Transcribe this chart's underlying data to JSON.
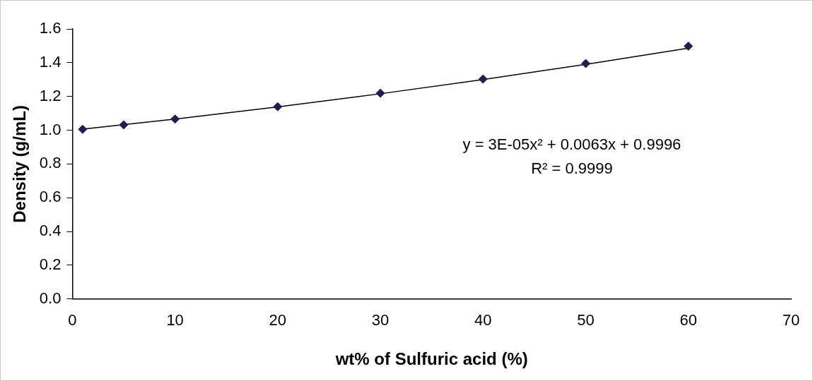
{
  "chart_data": {
    "type": "scatter",
    "xlabel": "wt% of Sulfuric acid (%)",
    "ylabel": "Density (g/mL)",
    "x": [
      1,
      5,
      10,
      20,
      30,
      40,
      50,
      60
    ],
    "series": [
      {
        "color": "#1f1f4f",
        "marker": "diamond",
        "values": [
          1.005,
          1.032,
          1.066,
          1.139,
          1.219,
          1.303,
          1.395,
          1.498
        ]
      },
      {
        "type": "line",
        "color": "#000000",
        "marker": "none",
        "x": [
          1,
          10,
          20,
          30,
          40,
          50,
          60
        ],
        "values": [
          1.006,
          1.066,
          1.138,
          1.216,
          1.3,
          1.39,
          1.486
        ]
      }
    ],
    "xlim": [
      0,
      70
    ],
    "xticks": [
      0,
      10,
      20,
      30,
      40,
      50,
      60,
      70
    ],
    "ylim": [
      0,
      1.6
    ],
    "yticks": [
      {
        "value": 0,
        "label": "0.0"
      },
      0.2,
      0.4,
      0.6,
      0.8,
      {
        "value": 1,
        "label": "1.0"
      },
      1.2,
      1.4,
      1.6
    ],
    "grid": false,
    "legend": false,
    "annotations": [
      "y = 3E-05x² + 0.0063x + 0.9996",
      "R² = 0.9999"
    ]
  }
}
